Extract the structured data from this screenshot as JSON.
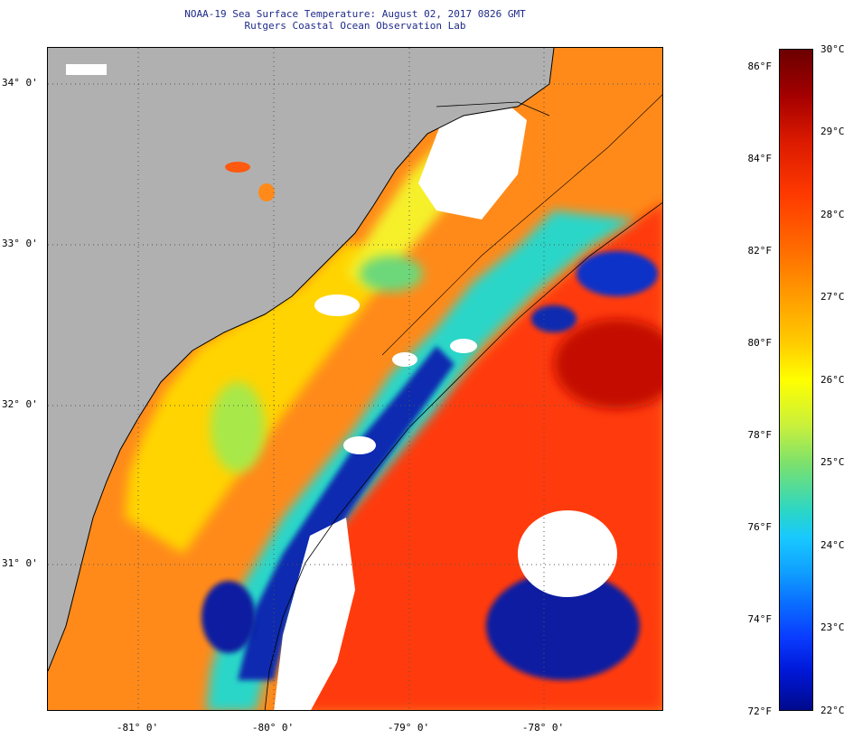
{
  "title": {
    "line1": "NOAA-19 Sea Surface Temperature:  August 02, 2017 0826 GMT",
    "line2": "Rutgers Coastal Ocean Observation Lab"
  },
  "map": {
    "lat_labels": [
      "34° 0'",
      "33° 0'",
      "32° 0'",
      "31° 0'"
    ],
    "lon_labels": [
      "-81° 0'",
      "-80° 0'",
      "-79° 0'",
      "-78° 0'"
    ],
    "colors": {
      "land": "#b0b0b0",
      "cloud": "#ffffff",
      "warm": "#ff4a10",
      "mid": "#ffd000",
      "cool": "#0a2ab0",
      "cyan": "#2ad6c8"
    }
  },
  "colorbar": {
    "fahrenheit_labels": [
      "86°F",
      "84°F",
      "82°F",
      "80°F",
      "78°F",
      "76°F",
      "74°F",
      "72°F"
    ],
    "celsius_labels": [
      "30°C",
      "29°C",
      "28°C",
      "27°C",
      "26°C",
      "25°C",
      "24°C",
      "23°C",
      "22°C"
    ],
    "range_c": [
      22,
      30
    ],
    "range_f": [
      72,
      86
    ]
  }
}
